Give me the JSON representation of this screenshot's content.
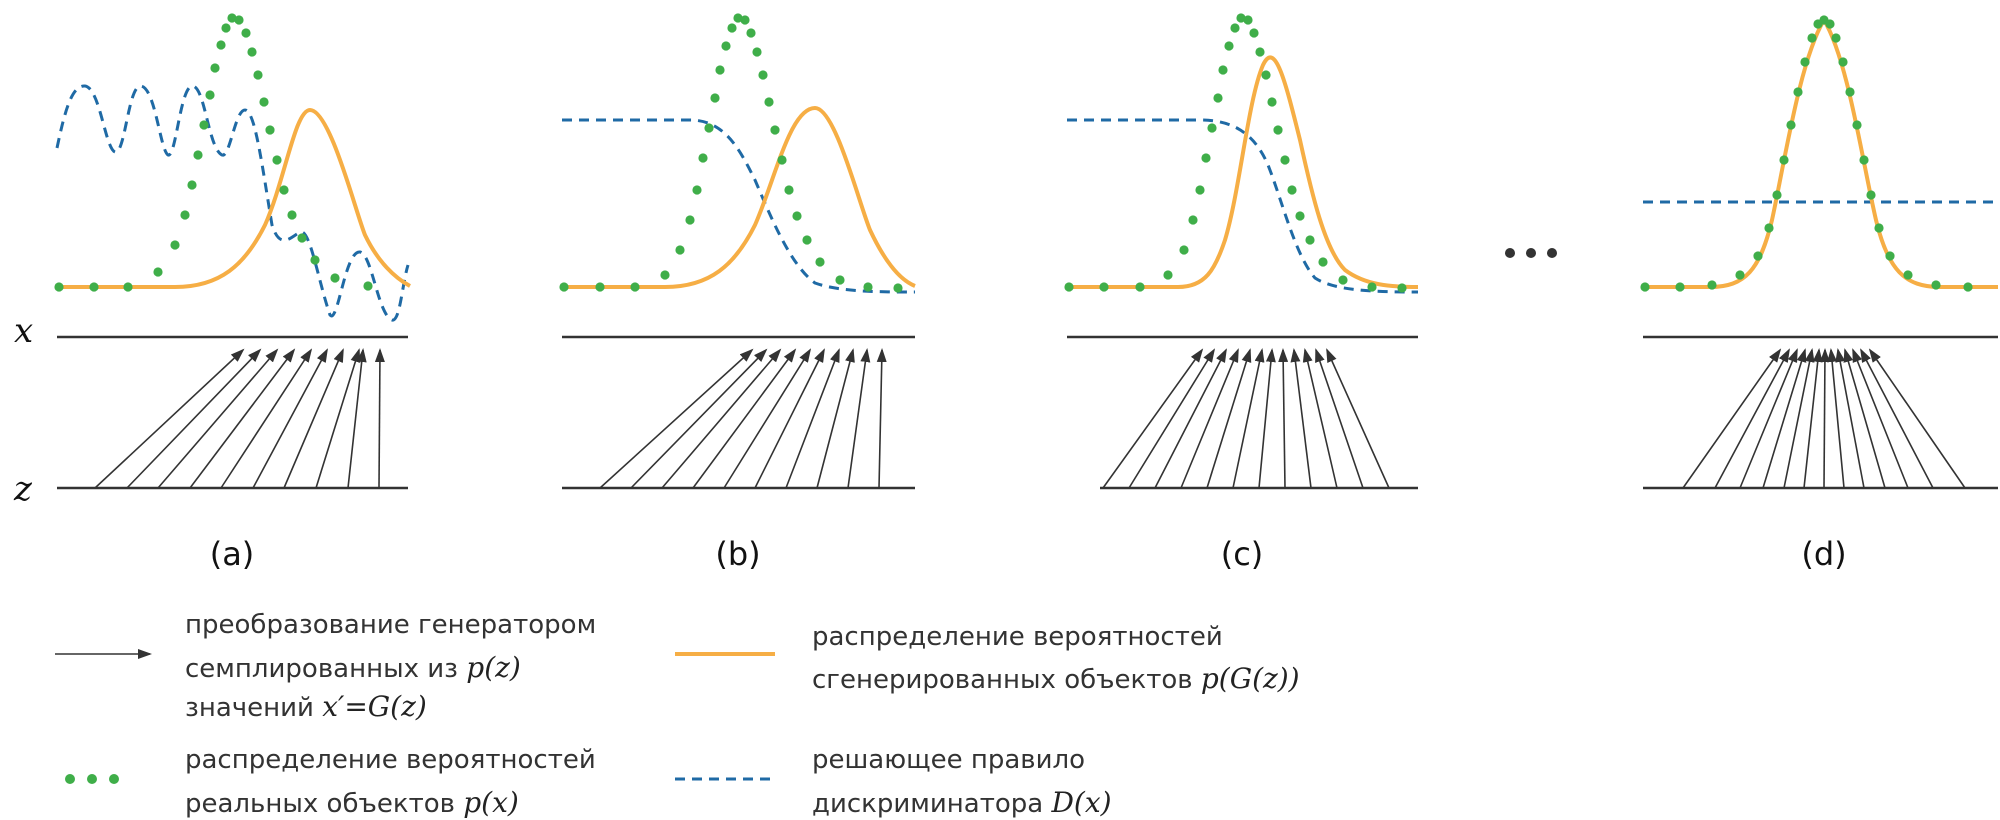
{
  "axes": {
    "x_label": "x",
    "z_label": "z"
  },
  "panels": [
    {
      "label": "(a)",
      "stage": "initial"
    },
    {
      "label": "(b)",
      "stage": "discriminator-trained"
    },
    {
      "label": "(c)",
      "stage": "generator-updated"
    },
    {
      "label": "(d)",
      "stage": "equilibrium"
    }
  ],
  "legend": {
    "generator_mapping": {
      "line1": "преобразование генератором",
      "line2_text": "семплированных из ",
      "line2_math": "p(z)",
      "line3_text": "значений ",
      "line3_math": "x′=G(z)"
    },
    "generated_distribution": {
      "line1": "распределение вероятностей",
      "line2_text": "сгенерированных объектов ",
      "line2_math": "p(G(z))"
    },
    "real_distribution": {
      "line1": "распределение вероятностей",
      "line2_text": "реальных объектов ",
      "line2_math": "p(x)"
    },
    "discriminator_rule": {
      "line1": "решающее правило",
      "line2_text": "дискриминатора ",
      "line2_math": "D(x)"
    }
  },
  "colors": {
    "generated": "#f6ae45",
    "discriminator": "#1f6aa5",
    "real": "#3fae49",
    "axis": "#333333"
  }
}
